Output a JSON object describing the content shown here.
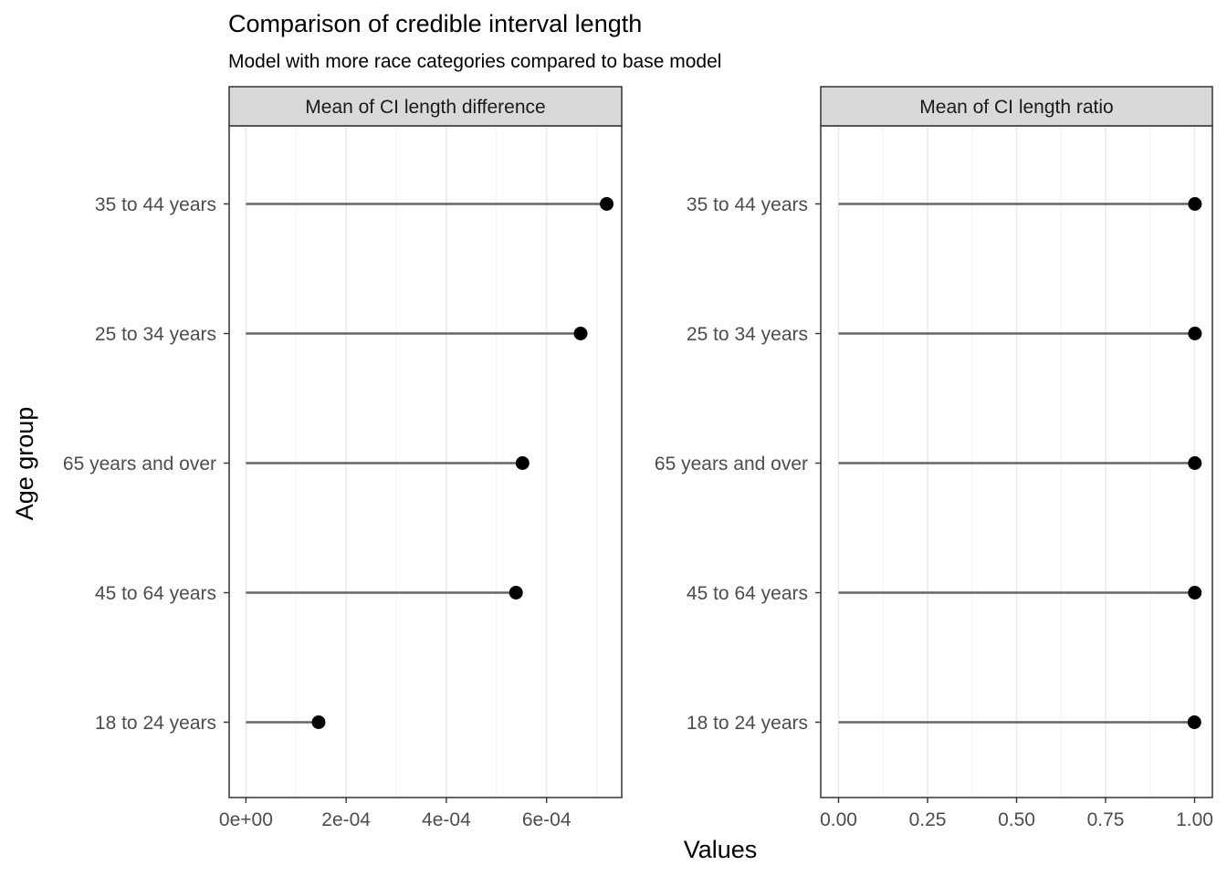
{
  "chart_data": {
    "type": "lollipop",
    "title": "Comparison of credible interval length",
    "subtitle": "Model with more race categories compared to base model",
    "xlabel": "Values",
    "ylabel": "Age group",
    "categories": [
      "35 to 44 years",
      "25 to 34 years",
      "65 years and over",
      "45 to 64 years",
      "18 to 24 years"
    ],
    "grid": true,
    "legend": "none",
    "colors": {
      "point": "#000000",
      "segment": "#666666",
      "strip_fill": "#d9d9d9",
      "grid": "#ebebeb"
    },
    "panels": [
      {
        "strip_label": "Mean of CI length difference",
        "xlim": [
          -3.35e-05,
          0.00075
        ],
        "ticks": [
          0,
          0.0002,
          0.0004,
          0.0006
        ],
        "tick_labels": [
          "0e+00",
          "2e-04",
          "4e-04",
          "6e-04"
        ],
        "values": [
          0.00072,
          0.000668,
          0.000552,
          0.000539,
          0.000145
        ]
      },
      {
        "strip_label": "Mean of CI length ratio",
        "xlim": [
          -0.05,
          1.05
        ],
        "ticks": [
          0,
          0.25,
          0.5,
          0.75,
          1.0
        ],
        "tick_labels": [
          "0.00",
          "0.25",
          "0.50",
          "0.75",
          "1.00"
        ],
        "values": [
          1.001,
          1.001,
          1.0008,
          1.0006,
          0.9995
        ]
      }
    ]
  }
}
